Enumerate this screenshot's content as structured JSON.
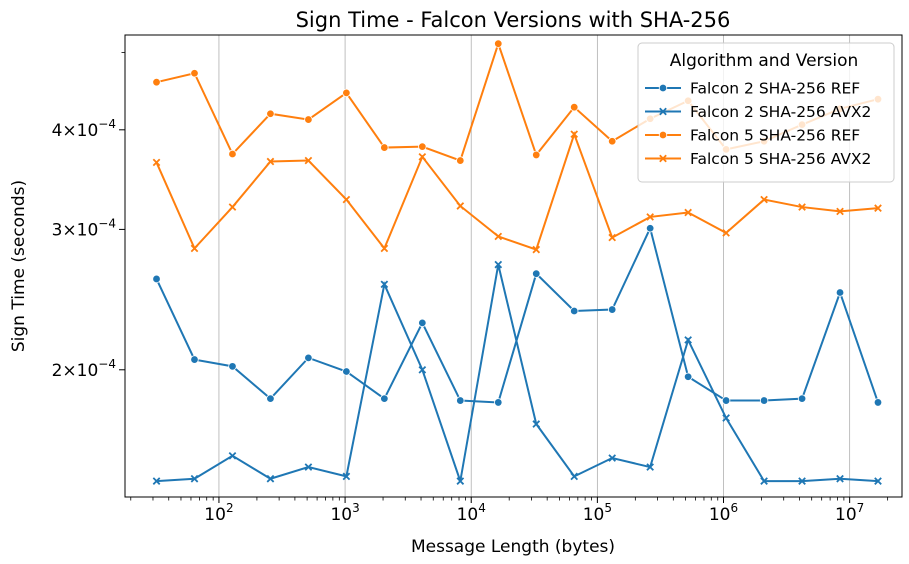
{
  "chart_data": {
    "type": "line",
    "title": "Sign Time - Falcon Versions with SHA-256",
    "xlabel": "Message Length (bytes)",
    "ylabel": "Sign Time (seconds)",
    "xscale": "log",
    "yscale": "log",
    "xlim": [
      18,
      26000000
    ],
    "ylim": [
      0.0001385,
      0.000526
    ],
    "x_ticks": [
      {
        "value": 100,
        "label": "10^2"
      },
      {
        "value": 1000,
        "label": "10^3"
      },
      {
        "value": 10000,
        "label": "10^4"
      },
      {
        "value": 100000,
        "label": "10^5"
      },
      {
        "value": 1000000,
        "label": "10^6"
      },
      {
        "value": 10000000,
        "label": "10^7"
      }
    ],
    "y_ticks": [
      {
        "value": 0.0002,
        "mantissa": "2",
        "exponent": "−4"
      },
      {
        "value": 0.0003,
        "mantissa": "3",
        "exponent": "−4"
      },
      {
        "value": 0.0004,
        "mantissa": "4",
        "exponent": "−4"
      }
    ],
    "grid": "vertical major",
    "legend": {
      "title": "Algorithm and Version",
      "position": "top-right"
    },
    "x": [
      32,
      64,
      128,
      256,
      512,
      1024,
      2048,
      4096,
      8192,
      16384,
      32768,
      65536,
      131072,
      262144,
      524288,
      1048576,
      2097152,
      4194304,
      8388608,
      16777216
    ],
    "series": [
      {
        "name": "Falcon 2 SHA-256 REF",
        "color": "#1f77b4",
        "marker": "circle",
        "values": [
          0.00026,
          0.000206,
          0.000202,
          0.000184,
          0.000207,
          0.000199,
          0.000184,
          0.000229,
          0.000183,
          0.000182,
          0.000264,
          0.000237,
          0.000238,
          0.000301,
          0.000196,
          0.000183,
          0.000183,
          0.000184,
          0.00025,
          0.000182
        ]
      },
      {
        "name": "Falcon 2 SHA-256 AVX2",
        "color": "#1f77b4",
        "marker": "x",
        "values": [
          0.000145,
          0.000146,
          0.000156,
          0.000146,
          0.000151,
          0.000147,
          0.000256,
          0.0002,
          0.000145,
          0.000271,
          0.000171,
          0.000147,
          0.000155,
          0.000151,
          0.000218,
          0.000174,
          0.000145,
          0.000145,
          0.000146,
          0.000145
        ]
      },
      {
        "name": "Falcon 5 SHA-256 REF",
        "color": "#ff7f0e",
        "marker": "circle",
        "values": [
          0.000459,
          0.000471,
          0.000373,
          0.000419,
          0.000412,
          0.000445,
          0.00038,
          0.000381,
          0.000366,
          0.000513,
          0.000372,
          0.000427,
          0.000387,
          0.000413,
          0.000435,
          0.000378,
          0.000387,
          0.000406,
          0.000425,
          0.000437
        ]
      },
      {
        "name": "Falcon 5 SHA-256 AVX2",
        "color": "#ff7f0e",
        "marker": "x",
        "values": [
          0.000364,
          0.000284,
          0.00032,
          0.000365,
          0.000366,
          0.000327,
          0.000284,
          0.00037,
          0.000321,
          0.000294,
          0.000283,
          0.000395,
          0.000293,
          0.000311,
          0.000315,
          0.000297,
          0.000327,
          0.00032,
          0.000316,
          0.000319
        ]
      }
    ]
  }
}
